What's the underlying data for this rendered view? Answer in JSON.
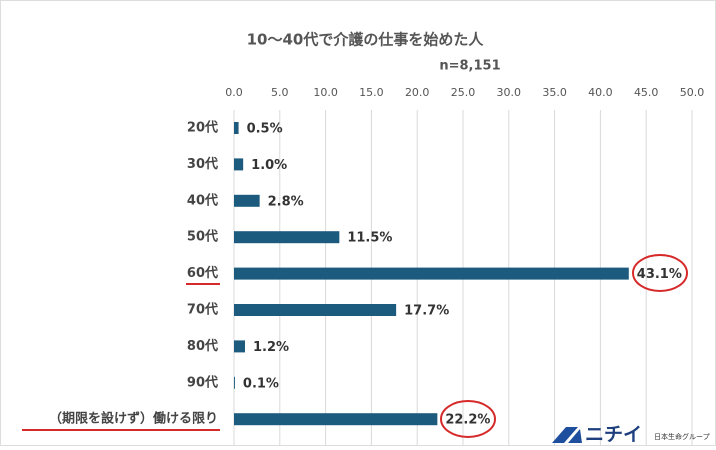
{
  "chart_data": {
    "type": "bar",
    "orientation": "horizontal",
    "title": "10～40代で介護の仕事を始めた人",
    "subtitle": "n=8,151",
    "categories": [
      "20代",
      "30代",
      "40代",
      "50代",
      "60代",
      "70代",
      "80代",
      "90代",
      "（期限を設けず）働ける限り"
    ],
    "values": [
      0.5,
      1.0,
      2.8,
      11.5,
      43.1,
      17.7,
      1.2,
      0.1,
      22.2
    ],
    "value_labels": [
      "0.5%",
      "1.0%",
      "2.8%",
      "11.5%",
      "43.1%",
      "17.7%",
      "1.2%",
      "0.1%",
      "22.2%"
    ],
    "color": "#1d5b7e",
    "xlim": [
      0,
      50
    ],
    "xticks": [
      {
        "value": 0,
        "label": "0.0"
      },
      {
        "value": 5,
        "label": "5.0"
      },
      {
        "value": 10,
        "label": "10.0"
      },
      {
        "value": 15,
        "label": "15.0"
      },
      {
        "value": 20,
        "label": "20.0"
      },
      {
        "value": 25,
        "label": "25.0"
      },
      {
        "value": 30,
        "label": "30.0"
      },
      {
        "value": 35,
        "label": "35.0"
      },
      {
        "value": 40,
        "label": "40.0"
      },
      {
        "value": 45,
        "label": "45.0"
      },
      {
        "value": 50,
        "label": "50.0"
      }
    ],
    "grid": true
  },
  "logo": "ニチイ",
  "logo_sub": "日本生命グループ"
}
